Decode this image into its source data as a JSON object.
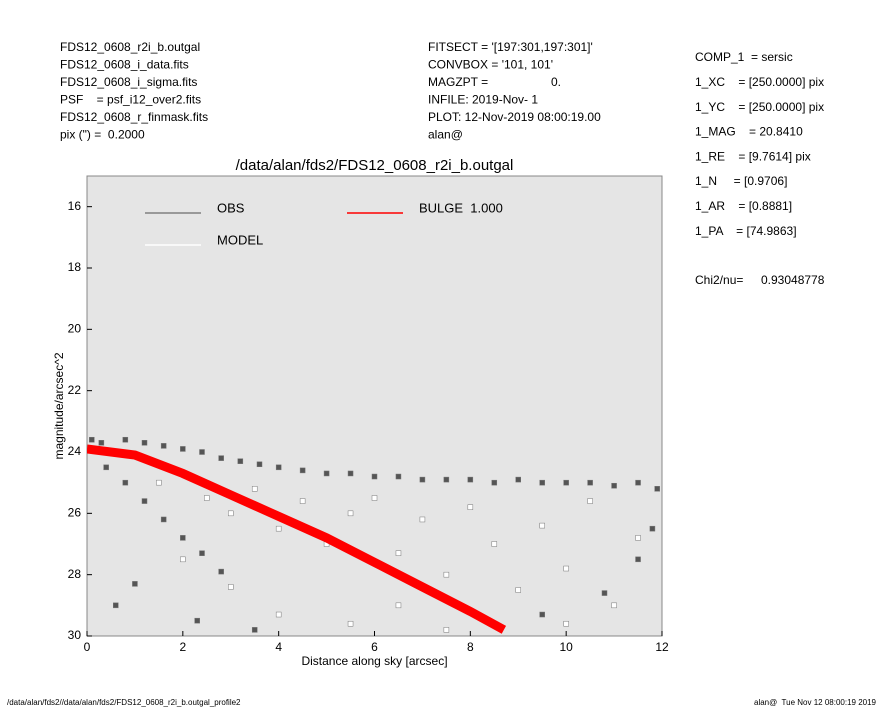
{
  "header": {
    "left": [
      "FDS12_0608_r2i_b.outgal",
      "FDS12_0608_i_data.fits",
      "FDS12_0608_i_sigma.fits",
      "PSF    = psf_i12_over2.fits",
      "FDS12_0608_r_finmask.fits",
      "pix (\") =  0.2000"
    ],
    "middle": [
      "FITSECT = '[197:301,197:301]'",
      "CONVBOX = '101, 101'",
      "MAGZPT =",
      "INFILE: 2019-Nov- 1",
      "PLOT: 12-Nov-2019 08:00:19.00",
      "alan@"
    ],
    "magzpt_value": "0.",
    "right": [
      "COMP_1  = sersic",
      "1_XC    = [250.0000] pix",
      "1_YC    = [250.0000] pix",
      "1_MAG    = 20.8410",
      "1_RE    = [9.7614] pix",
      "1_N     = [0.9706]",
      "1_AR    = [0.8881]",
      "1_PA    = [74.9863]"
    ],
    "chi_label": "Chi2/nu=",
    "chi_value": "0.93048778"
  },
  "footer": {
    "left": "/data/alan/fds2//data/alan/fds2/FDS12_0608_r2i_b.outgal_profile2",
    "right": "alan@  Tue Nov 12 08:00:19 2019"
  },
  "chart_data": {
    "type": "scatter",
    "title": "/data/alan/fds2/FDS12_0608_r2i_b.outgal",
    "x_label": "Distance along sky [arcsec]",
    "y_label": "magnitude/arcsec^2",
    "xlim": [
      0,
      12
    ],
    "ylim": [
      30,
      15
    ],
    "xticks": [
      0,
      2,
      4,
      6,
      8,
      10,
      12
    ],
    "yticks": [
      16,
      18,
      20,
      22,
      24,
      26,
      28,
      30
    ],
    "background": "#e5e5e5",
    "series": [
      {
        "name": "OBS",
        "type": "scatter",
        "color": "#555555",
        "legend_color": "#808080",
        "x": [
          0.1,
          0.3,
          0.8,
          1.2,
          1.6,
          2.0,
          2.4,
          2.8,
          3.2,
          3.6,
          4.0,
          4.5,
          5.0,
          5.5,
          6.0,
          6.5,
          7.0,
          7.5,
          8.0,
          8.5,
          9.0,
          9.5,
          10.0,
          10.5,
          11.0,
          11.5,
          11.9,
          0.4,
          0.8,
          1.2,
          1.6,
          2.0,
          2.4,
          2.8,
          1.0,
          0.6,
          2.3,
          3.5,
          11.5,
          10.8,
          11.8,
          9.5
        ],
        "values": [
          23.6,
          23.7,
          23.6,
          23.7,
          23.8,
          23.9,
          24.0,
          24.2,
          24.3,
          24.4,
          24.5,
          24.6,
          24.7,
          24.7,
          24.8,
          24.8,
          24.9,
          24.9,
          24.9,
          25.0,
          24.9,
          25.0,
          25.0,
          25.0,
          25.1,
          25.0,
          25.2,
          24.5,
          25.0,
          25.6,
          26.2,
          26.8,
          27.3,
          27.9,
          28.3,
          29.0,
          29.5,
          29.8,
          27.5,
          28.6,
          26.5,
          29.3
        ]
      },
      {
        "name": "MODEL",
        "type": "scatter",
        "color": "#ffffff",
        "legend_color": "#ffffff",
        "x": [
          1.5,
          2.5,
          3.0,
          3.5,
          4.0,
          4.5,
          5.0,
          5.5,
          6.0,
          6.5,
          7.0,
          7.5,
          8.0,
          8.5,
          9.0,
          9.5,
          10.0,
          10.5,
          11.0,
          11.5,
          3.0,
          4.0,
          5.5,
          2.0,
          6.5,
          7.5,
          10.0
        ],
        "values": [
          25.0,
          25.5,
          26.0,
          25.2,
          26.5,
          25.6,
          27.0,
          26.0,
          25.5,
          27.3,
          26.2,
          28.0,
          25.8,
          27.0,
          28.5,
          26.4,
          27.8,
          25.6,
          29.0,
          26.8,
          28.4,
          29.3,
          29.6,
          27.5,
          29.0,
          29.8,
          29.6
        ]
      },
      {
        "name": "BULGE  1.000",
        "type": "line",
        "color": "#ff0000",
        "legend_color": "#ff0000",
        "x": [
          0,
          1,
          2,
          3,
          4,
          5,
          6,
          7,
          8,
          8.7
        ],
        "values": [
          23.9,
          24.1,
          24.7,
          25.4,
          26.1,
          26.8,
          27.6,
          28.4,
          29.2,
          29.8
        ]
      }
    ]
  }
}
